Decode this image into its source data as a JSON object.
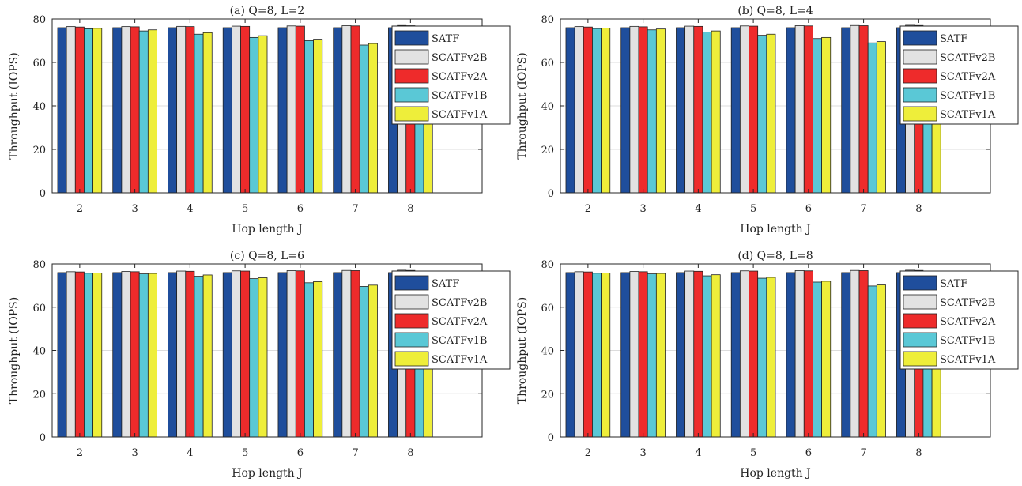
{
  "colors": {
    "series": [
      "#1f4e9c",
      "#e2e2e2",
      "#ee2b2b",
      "#5ac8d6",
      "#eeee3a"
    ],
    "grid": "#dcdcdc",
    "axis": "#262626"
  },
  "chart_data": [
    {
      "type": "bar",
      "title": "(a) Q=8, L=2",
      "xlabel": "Hop length J",
      "ylabel": "Throughput (IOPS)",
      "categories": [
        "2",
        "3",
        "4",
        "5",
        "6",
        "7",
        "8"
      ],
      "x_range": [
        "1.5",
        "9.3"
      ],
      "ylim": [
        0,
        80
      ],
      "yticks": [
        0,
        20,
        40,
        60,
        80
      ],
      "grid": true,
      "legend_position": "top-right",
      "series": [
        {
          "name": "SATF",
          "values": [
            76,
            76,
            76,
            76,
            76,
            76,
            76
          ]
        },
        {
          "name": "SCATFv2B",
          "values": [
            76.5,
            76.5,
            76.6,
            76.7,
            76.8,
            76.9,
            77
          ]
        },
        {
          "name": "SCATFv2A",
          "values": [
            76.3,
            76.4,
            76.5,
            76.6,
            76.7,
            76.8,
            76.9
          ]
        },
        {
          "name": "SCATFv1B",
          "values": [
            75.5,
            74.5,
            73,
            71.5,
            70,
            68,
            65.5
          ]
        },
        {
          "name": "SCATFv1A",
          "values": [
            75.7,
            75,
            73.7,
            72.3,
            70.7,
            68.7,
            66.2
          ]
        }
      ]
    },
    {
      "type": "bar",
      "title": "(b) Q=8, L=4",
      "xlabel": "Hop length J",
      "ylabel": "Throughput (IOPS)",
      "categories": [
        "2",
        "3",
        "4",
        "5",
        "6",
        "7",
        "8"
      ],
      "x_range": [
        "1.5",
        "9.3"
      ],
      "ylim": [
        0,
        80
      ],
      "yticks": [
        0,
        20,
        40,
        60,
        80
      ],
      "grid": true,
      "legend_position": "top-right",
      "series": [
        {
          "name": "SATF",
          "values": [
            76,
            76,
            76,
            76,
            76,
            76,
            76
          ]
        },
        {
          "name": "SCATFv2B",
          "values": [
            76.5,
            76.6,
            76.7,
            76.8,
            76.9,
            77,
            77.1
          ]
        },
        {
          "name": "SCATFv2A",
          "values": [
            76.3,
            76.4,
            76.6,
            76.7,
            76.8,
            76.9,
            77
          ]
        },
        {
          "name": "SCATFv1B",
          "values": [
            75.6,
            75,
            74,
            72.5,
            71,
            69,
            66.5
          ]
        },
        {
          "name": "SCATFv1A",
          "values": [
            75.8,
            75.4,
            74.5,
            73,
            71.5,
            69.6,
            67
          ]
        }
      ]
    },
    {
      "type": "bar",
      "title": "(c) Q=8, L=6",
      "xlabel": "Hop length J",
      "ylabel": "Throughput (IOPS)",
      "categories": [
        "2",
        "3",
        "4",
        "5",
        "6",
        "7",
        "8"
      ],
      "x_range": [
        "1.5",
        "9.3"
      ],
      "ylim": [
        0,
        80
      ],
      "yticks": [
        0,
        20,
        40,
        60,
        80
      ],
      "grid": true,
      "legend_position": "top-right",
      "series": [
        {
          "name": "SATF",
          "values": [
            76,
            76,
            76,
            76,
            76,
            76,
            76
          ]
        },
        {
          "name": "SCATFv2B",
          "values": [
            76.4,
            76.5,
            76.7,
            76.8,
            76.9,
            77,
            77.1
          ]
        },
        {
          "name": "SCATFv2A",
          "values": [
            76.3,
            76.4,
            76.6,
            76.7,
            76.8,
            76.9,
            77
          ]
        },
        {
          "name": "SCATFv1B",
          "values": [
            75.7,
            75.4,
            74.3,
            73.2,
            71.3,
            69.6,
            67
          ]
        },
        {
          "name": "SCATFv1A",
          "values": [
            75.8,
            75.6,
            74.9,
            73.6,
            71.8,
            70.2,
            67.4
          ]
        }
      ]
    },
    {
      "type": "bar",
      "title": "(d) Q=8, L=8",
      "xlabel": "Hop length J",
      "ylabel": "Throughput (IOPS)",
      "categories": [
        "2",
        "3",
        "4",
        "5",
        "6",
        "7",
        "8"
      ],
      "x_range": [
        "1.5",
        "9.3"
      ],
      "ylim": [
        0,
        80
      ],
      "yticks": [
        0,
        20,
        40,
        60,
        80
      ],
      "grid": true,
      "legend_position": "top-right",
      "series": [
        {
          "name": "SATF",
          "values": [
            76,
            76,
            76,
            76,
            76,
            76,
            76
          ]
        },
        {
          "name": "SCATFv2B",
          "values": [
            76.4,
            76.5,
            76.7,
            76.8,
            76.9,
            77,
            77.1
          ]
        },
        {
          "name": "SCATFv2A",
          "values": [
            76.3,
            76.4,
            76.6,
            76.7,
            76.8,
            76.9,
            77
          ]
        },
        {
          "name": "SCATFv1B",
          "values": [
            75.7,
            75.4,
            74.5,
            73.4,
            71.6,
            69.8,
            67.4
          ]
        },
        {
          "name": "SCATFv1A",
          "values": [
            75.8,
            75.6,
            75,
            73.8,
            72,
            70.3,
            67.8
          ]
        }
      ]
    }
  ]
}
